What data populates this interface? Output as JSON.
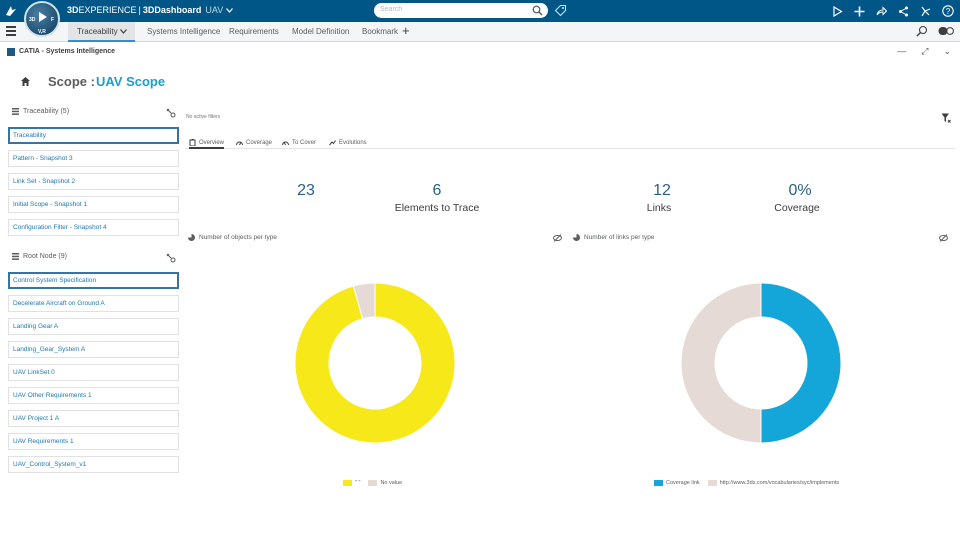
{
  "topbar": {
    "brand_bold": "3D",
    "brand_name": "EXPERIENCE",
    "brand_app": "3DDashboard",
    "brand_context": "UAV",
    "search_placeholder": "Search",
    "compass_label": "V,R",
    "compass_left": "3D",
    "compass_right": "F"
  },
  "tabs": [
    {
      "label": "Traceability",
      "active": true
    },
    {
      "label": "Systems Intelligence"
    },
    {
      "label": "Requirements"
    },
    {
      "label": "Model Definition"
    },
    {
      "label": "Bookmark"
    }
  ],
  "widget": {
    "title": "CATIA - Systems Intelligence"
  },
  "scope": {
    "label": "Scope :",
    "name": "UAV Scope"
  },
  "left": {
    "traceability_title": "Traceability (5)",
    "traceability_items": [
      "Traceability",
      "Pattern - Snapshot 3",
      "Link Set - Snapshot 2",
      "Initial Scope - Snapshot 1",
      "Configuration Filter - Snapshot 4"
    ],
    "root_title": "Root Node (9)",
    "root_items": [
      "Control System Specification",
      "Decelerate Aircraft on Ground A",
      "Landing Gear A",
      "Landing_Gear_System A",
      "UAV LinkSet 0",
      "UAV Other Requirements 1",
      "UAV Project 1 A",
      "UAV Requirements 1",
      "UAV_Control_System_v1"
    ]
  },
  "main": {
    "no_filters": "No active filters",
    "subtabs": [
      "Overview",
      "Coverage",
      "To Cover",
      "Evolutions"
    ],
    "kpis": [
      {
        "value": "23",
        "label": ""
      },
      {
        "value": "6",
        "label": "Elements to Trace"
      },
      {
        "value": "12",
        "label": "Links"
      },
      {
        "value": "0%",
        "label": "Coverage"
      }
    ],
    "charts": [
      {
        "title": "Number of objects per type",
        "slices": [
          {
            "name": "\" \"",
            "value": 22,
            "color": "#f7e81a"
          },
          {
            "name": "No value",
            "value": 1,
            "color": "#e6dad6"
          }
        ]
      },
      {
        "title": "Number of links per type",
        "slices": [
          {
            "name": "Coverage link",
            "value": 6,
            "color": "#14a6d9"
          },
          {
            "name": "http://www.3ds.com/vocabularies/syc/implements",
            "value": 6,
            "color": "#e6dad6"
          }
        ]
      }
    ]
  },
  "colors": {
    "topbar": "#005686",
    "accent": "#1e9dc8",
    "item_text": "#1f78b4"
  }
}
